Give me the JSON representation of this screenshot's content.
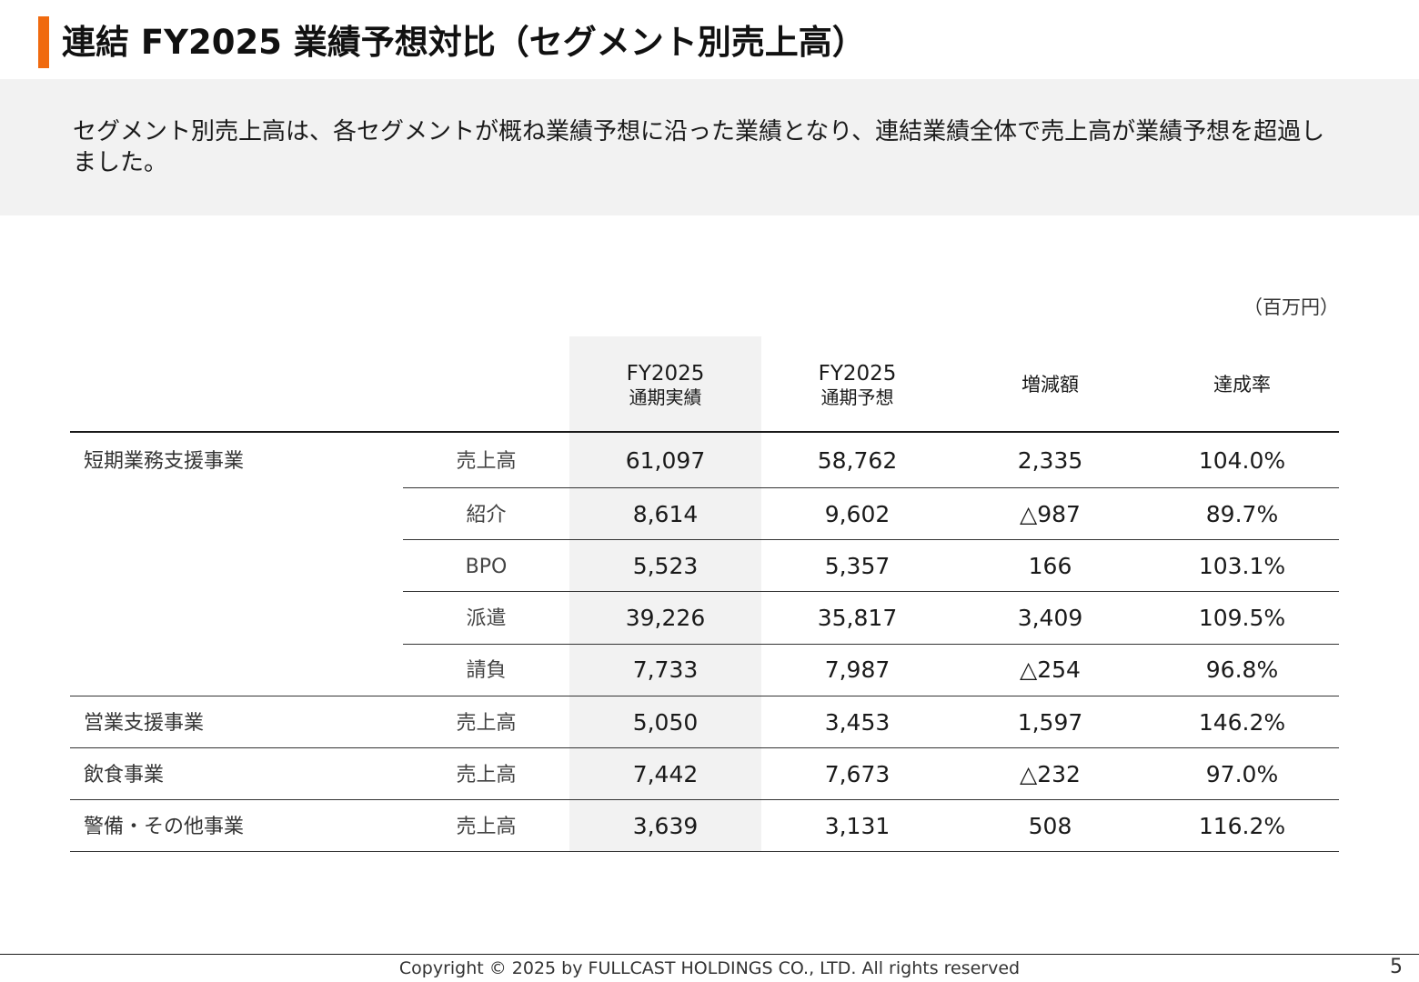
{
  "header": {
    "title": "連結 FY2025 業績予想対比（セグメント別売上高）"
  },
  "summary": {
    "text": "セグメント別売上高は、各セグメントが概ね業績予想に沿った業績となり、連結業績全体で売上高が業績予想を超過しました。"
  },
  "table": {
    "unit": "（百万円）",
    "columns": [
      {
        "line1": "FY2025",
        "line2": "通期実績"
      },
      {
        "line1": "FY2025",
        "line2": "通期予想"
      },
      {
        "line1": "増減額",
        "line2": ""
      },
      {
        "line1": "達成率",
        "line2": ""
      }
    ],
    "rows": [
      {
        "segment": "短期業務支援事業",
        "item": "売上高",
        "actual": "61,097",
        "forecast": "58,762",
        "change": "2,335",
        "rate": "104.0%"
      },
      {
        "segment": "",
        "item": "紹介",
        "actual": "8,614",
        "forecast": "9,602",
        "change": "△987",
        "rate": "89.7%"
      },
      {
        "segment": "",
        "item": "BPO",
        "actual": "5,523",
        "forecast": "5,357",
        "change": "166",
        "rate": "103.1%"
      },
      {
        "segment": "",
        "item": "派遣",
        "actual": "39,226",
        "forecast": "35,817",
        "change": "3,409",
        "rate": "109.5%"
      },
      {
        "segment": "",
        "item": "請負",
        "actual": "7,733",
        "forecast": "7,987",
        "change": "△254",
        "rate": "96.8%"
      },
      {
        "segment": "営業支援事業",
        "item": "売上高",
        "actual": "5,050",
        "forecast": "3,453",
        "change": "1,597",
        "rate": "146.2%"
      },
      {
        "segment": "飲食事業",
        "item": "売上高",
        "actual": "7,442",
        "forecast": "7,673",
        "change": "△232",
        "rate": "97.0%"
      },
      {
        "segment": "警備・その他事業",
        "item": "売上高",
        "actual": "3,639",
        "forecast": "3,131",
        "change": "508",
        "rate": "116.2%"
      }
    ]
  },
  "footer": {
    "copyright": "Copyright © 2025 by FULLCAST HOLDINGS CO., LTD. All rights reserved",
    "page_number": "5"
  }
}
